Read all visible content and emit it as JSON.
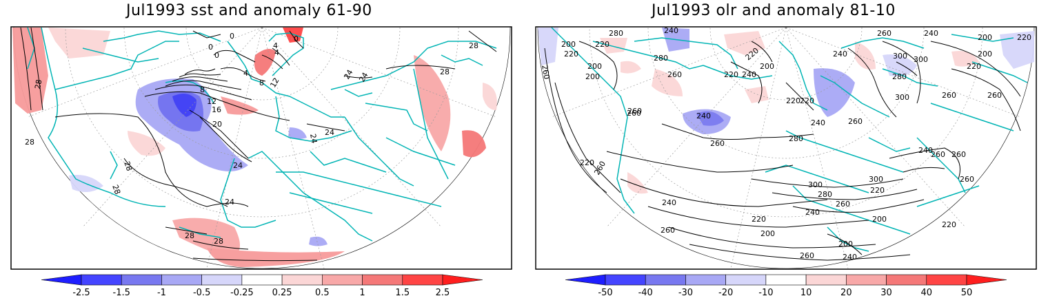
{
  "maps": [
    {
      "title": "Jul1993 sst and anomaly 61-90",
      "contour_labels": [
        "28",
        "28",
        "28",
        "28",
        "24",
        "24",
        "24",
        "24",
        "20",
        "16",
        "12",
        "8",
        "4",
        "4",
        "8",
        "12",
        "0",
        "0",
        "0",
        "4",
        "0",
        "24",
        "24",
        "28",
        "28"
      ],
      "colorbar": {
        "labels": [
          "-2.5",
          "-1.5",
          "-1",
          "-0.5",
          "-0.25",
          "0.25",
          "0.5",
          "1",
          "1.5",
          "2.5"
        ],
        "colors": [
          "#1e1eff",
          "#4444ff",
          "#7878f0",
          "#a8a8f5",
          "#d6d6fa",
          "#ffffff",
          "#fbd6d6",
          "#f8a8a8",
          "#f57878",
          "#ff4444",
          "#ff1e1e"
        ]
      }
    },
    {
      "title": "Jul1993 olr and anomaly 81-10",
      "contour_labels": [
        "280",
        "240",
        "220",
        "200",
        "220",
        "260",
        "200",
        "280",
        "260",
        "220",
        "240",
        "200",
        "260",
        "220",
        "240",
        "260",
        "200",
        "220",
        "300",
        "260",
        "300",
        "280",
        "260",
        "240",
        "220",
        "220",
        "260",
        "260",
        "300",
        "300",
        "280",
        "260",
        "240",
        "220",
        "200",
        "220",
        "240",
        "260",
        "200",
        "240",
        "260",
        "280",
        "260",
        "240",
        "260",
        "200",
        "220",
        "260",
        "260"
      ],
      "colorbar": {
        "labels": [
          "-50",
          "-40",
          "-30",
          "-20",
          "-10",
          "10",
          "20",
          "30",
          "40",
          "50"
        ],
        "colors": [
          "#1e1eff",
          "#4444ff",
          "#7878f0",
          "#a8a8f5",
          "#d6d6fa",
          "#ffffff",
          "#fbd6d6",
          "#f8a8a8",
          "#f57878",
          "#ff4444",
          "#ff1e1e"
        ]
      }
    }
  ]
}
